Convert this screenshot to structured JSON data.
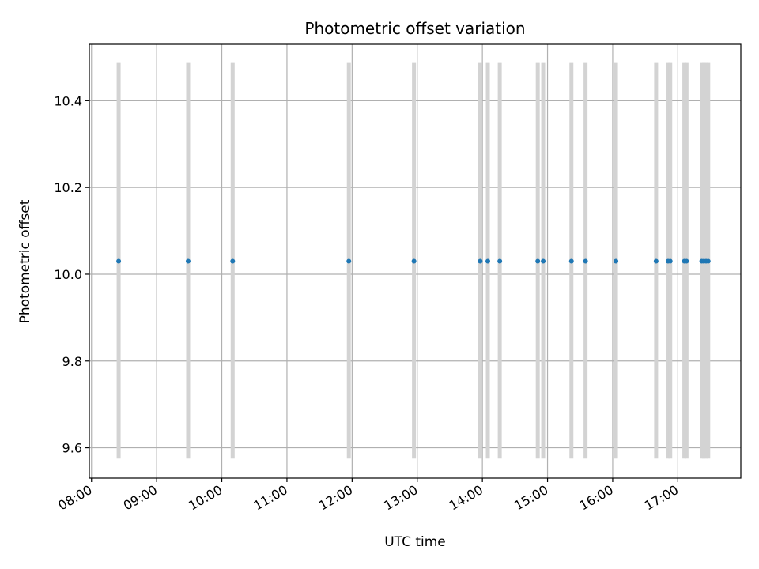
{
  "chart_data": {
    "type": "scatter",
    "title": "Photometric offset variation",
    "xlabel": "UTC time",
    "ylabel": "Photometric offset",
    "x_axis_type": "time",
    "xlim": [
      "07:58",
      "17:58"
    ],
    "ylim": [
      9.53,
      10.53
    ],
    "x_ticks": [
      "08:00",
      "09:00",
      "10:00",
      "11:00",
      "12:00",
      "13:00",
      "14:00",
      "15:00",
      "16:00",
      "17:00"
    ],
    "y_ticks": [
      9.6,
      9.8,
      10.0,
      10.2,
      10.4
    ],
    "grid": true,
    "point_color": "#1f77b4",
    "error_bar_color": "#d3d3d3",
    "error_bar_range": [
      9.575,
      10.487
    ],
    "points": [
      {
        "t": "08:25",
        "y": 10.03
      },
      {
        "t": "09:29",
        "y": 10.03
      },
      {
        "t": "10:10",
        "y": 10.03
      },
      {
        "t": "11:57",
        "y": 10.03
      },
      {
        "t": "12:57",
        "y": 10.03
      },
      {
        "t": "13:58",
        "y": 10.03
      },
      {
        "t": "14:05",
        "y": 10.03
      },
      {
        "t": "14:16",
        "y": 10.03
      },
      {
        "t": "14:51",
        "y": 10.03
      },
      {
        "t": "14:56",
        "y": 10.03
      },
      {
        "t": "15:22",
        "y": 10.03
      },
      {
        "t": "15:35",
        "y": 10.03
      },
      {
        "t": "16:03",
        "y": 10.03
      },
      {
        "t": "16:40",
        "y": 10.03
      },
      {
        "t": "16:51",
        "y": 10.03
      },
      {
        "t": "16:53",
        "y": 10.03
      },
      {
        "t": "17:06",
        "y": 10.03
      },
      {
        "t": "17:08",
        "y": 10.03
      },
      {
        "t": "17:22",
        "y": 10.03
      },
      {
        "t": "17:24",
        "y": 10.03
      },
      {
        "t": "17:26",
        "y": 10.03
      },
      {
        "t": "17:28",
        "y": 10.03
      }
    ]
  }
}
